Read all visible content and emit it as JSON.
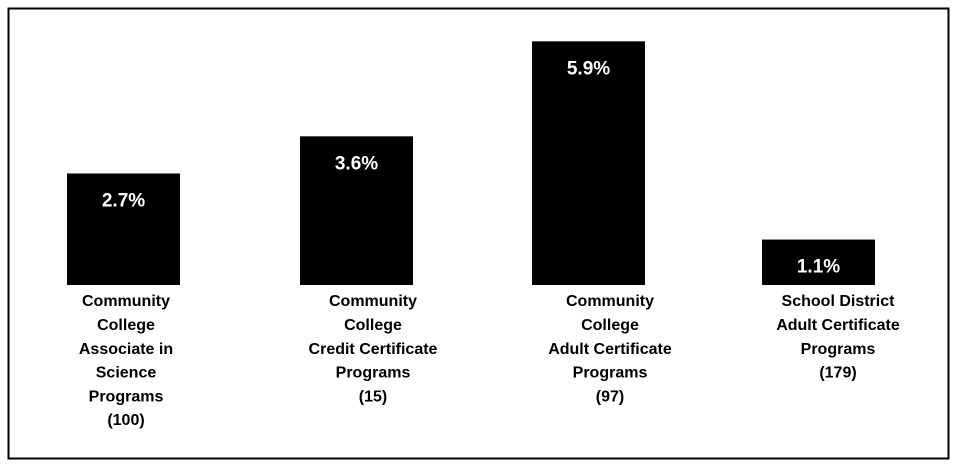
{
  "chart_data": {
    "type": "bar",
    "categories": [
      [
        "Community",
        "College",
        "Associate in",
        "Science",
        "Programs",
        "(100)"
      ],
      [
        "Community",
        "College",
        "Credit Certificate",
        "Programs",
        "(15)"
      ],
      [
        "Community",
        "College",
        "Adult Certificate",
        "Programs",
        "(97)"
      ],
      [
        "School District",
        "Adult Certificate",
        "Programs",
        "(179)"
      ]
    ],
    "values": [
      2.7,
      3.6,
      5.9,
      1.1
    ],
    "value_labels": [
      "2.7%",
      "3.6%",
      "5.9%",
      "1.1%"
    ],
    "color": "#000000"
  }
}
